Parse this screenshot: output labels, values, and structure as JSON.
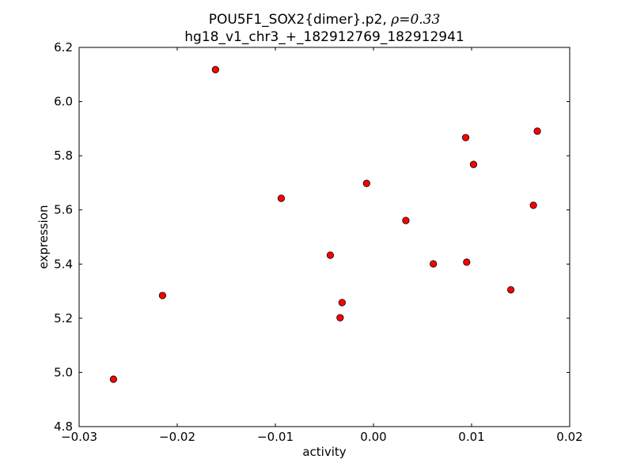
{
  "chart_data": {
    "type": "scatter",
    "title_line1": "POU5F1_SOX2{dimer}.p2, ",
    "title_rho": "ρ=0.33",
    "title_line2": "hg18_v1_chr3_+_182912769_182912941",
    "xlabel": "activity",
    "ylabel": "expression",
    "xlim": [
      -0.03,
      0.02
    ],
    "ylim": [
      4.8,
      6.2
    ],
    "xticks": [
      -0.03,
      -0.02,
      -0.01,
      0.0,
      0.01,
      0.02
    ],
    "xtick_labels": [
      "−0.03",
      "−0.02",
      "−0.01",
      "0.00",
      "0.01",
      "0.02"
    ],
    "yticks": [
      4.8,
      5.0,
      5.2,
      5.4,
      5.6,
      5.8,
      6.0,
      6.2
    ],
    "ytick_labels": [
      "4.8",
      "5.0",
      "5.2",
      "5.4",
      "5.6",
      "5.8",
      "6.0",
      "6.2"
    ],
    "grid": false,
    "marker_color": "#ff0000",
    "points": [
      {
        "x": -0.0161,
        "y": 6.118
      },
      {
        "x": -0.0265,
        "y": 4.975
      },
      {
        "x": -0.0215,
        "y": 5.284
      },
      {
        "x": -0.0094,
        "y": 5.643
      },
      {
        "x": -0.0044,
        "y": 5.433
      },
      {
        "x": -0.0032,
        "y": 5.258
      },
      {
        "x": -0.0034,
        "y": 5.202
      },
      {
        "x": -0.0007,
        "y": 5.698
      },
      {
        "x": 0.0033,
        "y": 5.561
      },
      {
        "x": 0.0061,
        "y": 5.401
      },
      {
        "x": 0.0095,
        "y": 5.407
      },
      {
        "x": 0.0094,
        "y": 5.867
      },
      {
        "x": 0.0102,
        "y": 5.768
      },
      {
        "x": 0.014,
        "y": 5.305
      },
      {
        "x": 0.0163,
        "y": 5.617
      },
      {
        "x": 0.0167,
        "y": 5.891
      }
    ]
  }
}
